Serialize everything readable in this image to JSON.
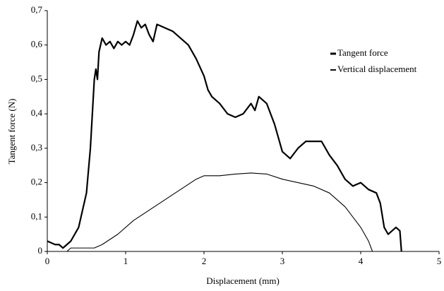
{
  "chart_data": {
    "type": "line",
    "xlabel": "Displacement (mm)",
    "ylabel": "Tangent force (N)",
    "xlim": [
      0,
      5
    ],
    "xticks": [
      0,
      1,
      2,
      3,
      4,
      5
    ],
    "ylim": [
      0,
      0.7
    ],
    "yticks": [
      0,
      {
        "value": 0.1,
        "label": "0,1"
      },
      {
        "value": 0.2,
        "label": "0,2"
      },
      {
        "value": 0.3,
        "label": "0,3"
      },
      {
        "value": 0.4,
        "label": "0,4"
      },
      {
        "value": 0.5,
        "label": "0,5"
      },
      {
        "value": 0.6,
        "label": "0,6"
      },
      {
        "value": 0.7,
        "label": "0,7"
      }
    ],
    "grid": false,
    "legend": "upper right",
    "series": [
      {
        "name": "Tangent force",
        "color": "#000000",
        "line_width": 2.2,
        "x": [
          0,
          0.1,
          0.15,
          0.2,
          0.25,
          0.3,
          0.4,
          0.5,
          0.55,
          0.6,
          0.62,
          0.64,
          0.66,
          0.7,
          0.75,
          0.8,
          0.85,
          0.9,
          0.95,
          1.0,
          1.05,
          1.1,
          1.15,
          1.2,
          1.25,
          1.3,
          1.35,
          1.4,
          1.5,
          1.6,
          1.7,
          1.8,
          1.9,
          2.0,
          2.05,
          2.1,
          2.2,
          2.3,
          2.4,
          2.5,
          2.6,
          2.65,
          2.7,
          2.8,
          2.9,
          3.0,
          3.1,
          3.2,
          3.3,
          3.4,
          3.5,
          3.6,
          3.7,
          3.75,
          3.8,
          3.9,
          4.0,
          4.1,
          4.2,
          4.25,
          4.3,
          4.35,
          4.4,
          4.45,
          4.5,
          4.52
        ],
        "values": [
          0.03,
          0.02,
          0.02,
          0.01,
          0.02,
          0.03,
          0.07,
          0.17,
          0.3,
          0.5,
          0.53,
          0.5,
          0.58,
          0.62,
          0.6,
          0.61,
          0.59,
          0.61,
          0.6,
          0.61,
          0.6,
          0.63,
          0.67,
          0.65,
          0.66,
          0.63,
          0.61,
          0.66,
          0.65,
          0.64,
          0.62,
          0.6,
          0.56,
          0.51,
          0.47,
          0.45,
          0.43,
          0.4,
          0.39,
          0.4,
          0.43,
          0.41,
          0.45,
          0.43,
          0.37,
          0.29,
          0.27,
          0.3,
          0.32,
          0.32,
          0.32,
          0.28,
          0.25,
          0.23,
          0.21,
          0.19,
          0.2,
          0.18,
          0.17,
          0.14,
          0.07,
          0.05,
          0.06,
          0.07,
          0.06,
          0
        ]
      },
      {
        "name": "Vertical displacement",
        "color": "#000000",
        "line_width": 1.1,
        "x": [
          0.25,
          0.3,
          0.6,
          0.7,
          0.9,
          1.1,
          1.3,
          1.5,
          1.7,
          1.9,
          2.0,
          2.2,
          2.4,
          2.6,
          2.8,
          3.0,
          3.2,
          3.4,
          3.6,
          3.8,
          4.0,
          4.1,
          4.15
        ],
        "values": [
          0,
          0.01,
          0.01,
          0.02,
          0.05,
          0.09,
          0.12,
          0.15,
          0.18,
          0.21,
          0.22,
          0.22,
          0.225,
          0.228,
          0.225,
          0.21,
          0.2,
          0.19,
          0.17,
          0.13,
          0.07,
          0.03,
          0
        ]
      }
    ]
  }
}
